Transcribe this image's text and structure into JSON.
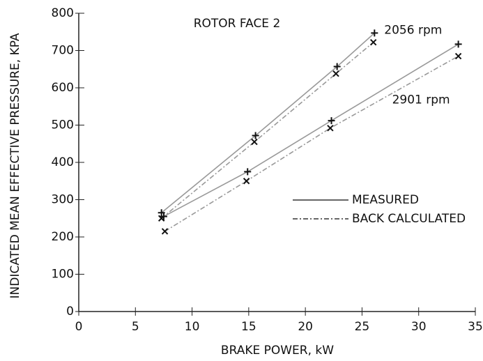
{
  "chart_data": {
    "type": "line",
    "title": "ROTOR FACE 2",
    "xlabel": "BRAKE POWER, kW",
    "ylabel": "INDICATED MEAN EFFECTIVE PRESSURE, KPA",
    "xlim": [
      0,
      35
    ],
    "xticks": [
      0,
      5,
      10,
      15,
      20,
      25,
      30,
      35
    ],
    "ylim": [
      0,
      800
    ],
    "yticks": [
      0,
      100,
      200,
      300,
      400,
      500,
      600,
      700,
      800
    ],
    "legend": [
      {
        "name": "MEASURED",
        "dash": "solid"
      },
      {
        "name": "BACK CALCULATED",
        "dash": "dashdot"
      }
    ],
    "series": [
      {
        "label": "2056 rpm",
        "dash": "solid",
        "color": "#999999",
        "x": [
          7.3,
          15.6,
          22.8,
          26.1
        ],
        "values": [
          265,
          472,
          657,
          747
        ]
      },
      {
        "dash": "dashdot",
        "color": "#999999",
        "x": [
          7.3,
          15.5,
          22.7,
          26.0
        ],
        "values": [
          250,
          455,
          638,
          722
        ]
      },
      {
        "label": "2901 rpm",
        "dash": "solid",
        "color": "#999999",
        "x": [
          7.5,
          14.9,
          22.3,
          33.5
        ],
        "values": [
          255,
          375,
          512,
          717
        ]
      },
      {
        "dash": "dashdot",
        "color": "#999999",
        "x": [
          7.6,
          14.8,
          22.2,
          33.5
        ],
        "values": [
          215,
          350,
          492,
          685
        ]
      }
    ]
  }
}
